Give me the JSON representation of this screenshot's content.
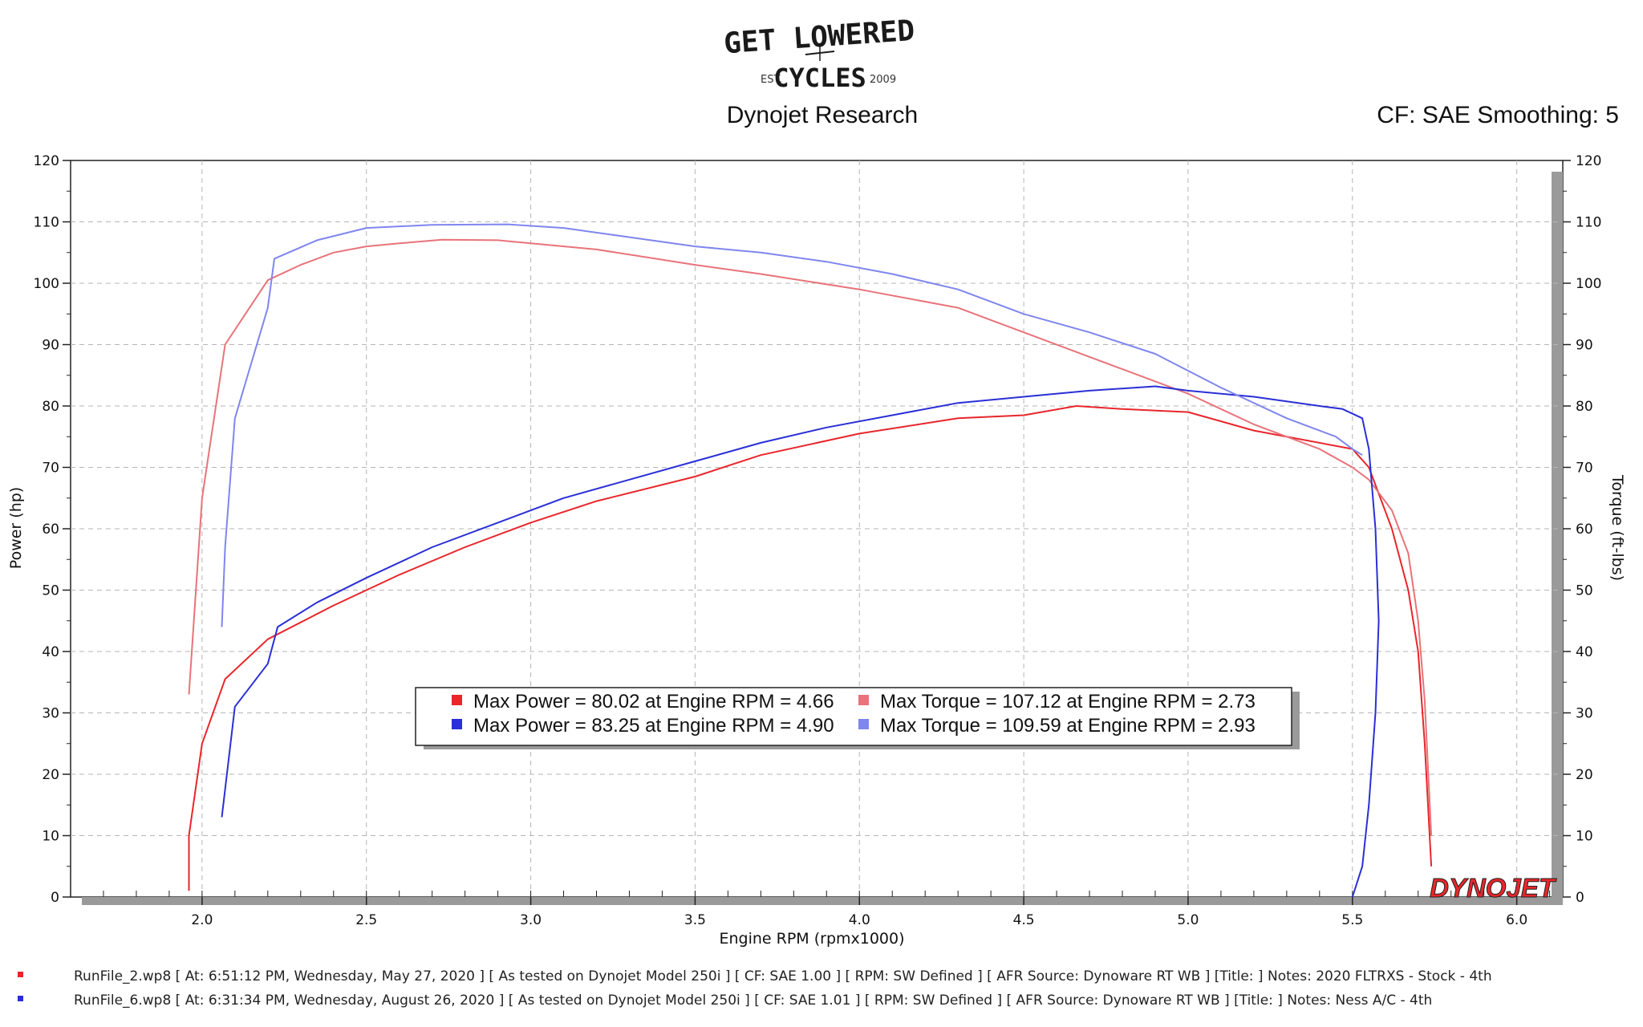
{
  "header": {
    "logo_line1": "GET LOWERED",
    "logo_est": "EST.",
    "logo_line2": "CYCLES",
    "logo_year": "2009",
    "brand": "Dynojet Research",
    "correction": "CF: SAE Smoothing: 5",
    "dynojet_logo": "DYNOJET"
  },
  "colors": {
    "run1_power": "#e8262b",
    "run1_torque": "#e8737a",
    "run2_power": "#2a2fd6",
    "run2_torque": "#7f86ee"
  },
  "legend": {
    "rows": [
      {
        "power": "Max Power = 80.02 at Engine RPM = 4.66",
        "torque": "Max Torque = 107.12 at Engine RPM = 2.73"
      },
      {
        "power": "Max Power = 83.25 at Engine RPM = 4.90",
        "torque": "Max Torque = 109.59 at Engine RPM = 2.93"
      }
    ]
  },
  "footer": {
    "run1": "RunFile_2.wp8 [ At: 6:51:12 PM, Wednesday, May 27, 2020 ] [ As tested on Dynojet Model 250i ] [ CF: SAE 1.00 ] [ RPM: SW Defined ] [ AFR Source: Dynoware RT WB ] [Title: ]  Notes: 2020 FLTRXS - Stock - 4th",
    "run2": "RunFile_6.wp8 [ At: 6:31:34 PM, Wednesday, August 26, 2020 ] [ As tested on Dynojet Model 250i ] [ CF: SAE 1.01 ] [ RPM: SW Defined ] [ AFR Source: Dynoware RT WB ] [Title: ]  Notes: Ness A/C - 4th"
  },
  "chart_data": {
    "type": "line",
    "xlabel": "Engine RPM (rpmx1000)",
    "ylabel": "Power (hp)",
    "y2label": "Torque (ft-lbs)",
    "xlim": [
      1.6,
      6.14
    ],
    "ylim": [
      0,
      120
    ],
    "y2lim": [
      0,
      120
    ],
    "xticks": [
      "2.0",
      "2.5",
      "3.0",
      "3.5",
      "4.0",
      "4.5",
      "5.0",
      "5.5",
      "6.0"
    ],
    "yticks": [
      "0",
      "10",
      "20",
      "30",
      "40",
      "50",
      "60",
      "70",
      "80",
      "90",
      "100",
      "110",
      "120"
    ],
    "grid": true,
    "series": [
      {
        "name": "RunFile_2.wp8 Power",
        "axis": "left",
        "colorKey": "run1_power",
        "x": [
          1.96,
          1.96,
          2.0,
          2.07,
          2.2,
          2.4,
          2.6,
          2.8,
          3.0,
          3.2,
          3.5,
          3.7,
          4.0,
          4.3,
          4.5,
          4.66,
          4.8,
          5.0,
          5.2,
          5.5,
          5.55,
          5.62,
          5.67,
          5.7,
          5.72,
          5.74
        ],
        "y": [
          1,
          10,
          25,
          35.5,
          42,
          47.5,
          52.5,
          57,
          61,
          64.5,
          68.5,
          72,
          75.5,
          78,
          78.5,
          80,
          79.5,
          79,
          76,
          73,
          70,
          60,
          50,
          40,
          25,
          5
        ]
      },
      {
        "name": "RunFile_2.wp8 Torque",
        "axis": "right",
        "colorKey": "run1_torque",
        "x": [
          1.96,
          2.0,
          2.07,
          2.2,
          2.3,
          2.4,
          2.5,
          2.6,
          2.73,
          2.9,
          3.0,
          3.2,
          3.5,
          3.7,
          4.0,
          4.3,
          4.5,
          4.7,
          5.0,
          5.2,
          5.4,
          5.5,
          5.55,
          5.62,
          5.67,
          5.7,
          5.72,
          5.74
        ],
        "y": [
          33,
          65,
          90,
          100.5,
          103,
          105,
          106,
          106.5,
          107.1,
          107,
          106.5,
          105.5,
          103,
          101.5,
          99,
          96,
          92,
          88,
          82,
          77,
          73,
          70,
          68,
          63,
          56,
          45,
          32,
          10
        ]
      },
      {
        "name": "RunFile_6.wp8 Power",
        "axis": "left",
        "colorKey": "run2_power",
        "x": [
          2.06,
          2.1,
          2.2,
          2.23,
          2.35,
          2.5,
          2.7,
          2.9,
          3.1,
          3.3,
          3.5,
          3.7,
          3.9,
          4.1,
          4.3,
          4.5,
          4.7,
          4.9,
          5.0,
          5.2,
          5.4,
          5.47,
          5.53,
          5.55,
          5.57,
          5.58,
          5.57,
          5.55,
          5.53,
          5.5
        ],
        "y": [
          13,
          31,
          38,
          44,
          48,
          52,
          57,
          61,
          65,
          68,
          71,
          74,
          76.5,
          78.5,
          80.5,
          81.5,
          82.5,
          83.2,
          82.5,
          81.5,
          80,
          79.5,
          78,
          73,
          60,
          45,
          30,
          15,
          5,
          0
        ]
      },
      {
        "name": "RunFile_6.wp8 Torque",
        "axis": "right",
        "colorKey": "run2_torque",
        "x": [
          2.06,
          2.07,
          2.1,
          2.2,
          2.22,
          2.35,
          2.5,
          2.7,
          2.93,
          3.1,
          3.3,
          3.5,
          3.7,
          3.9,
          4.1,
          4.3,
          4.5,
          4.7,
          4.9,
          5.1,
          5.3,
          5.45,
          5.5,
          5.53
        ],
        "y": [
          44,
          57,
          78,
          96,
          104,
          107,
          109,
          109.5,
          109.6,
          109,
          107.5,
          106,
          105,
          103.5,
          101.5,
          99,
          95,
          92,
          88.5,
          83,
          78,
          75,
          73,
          72
        ]
      }
    ]
  }
}
